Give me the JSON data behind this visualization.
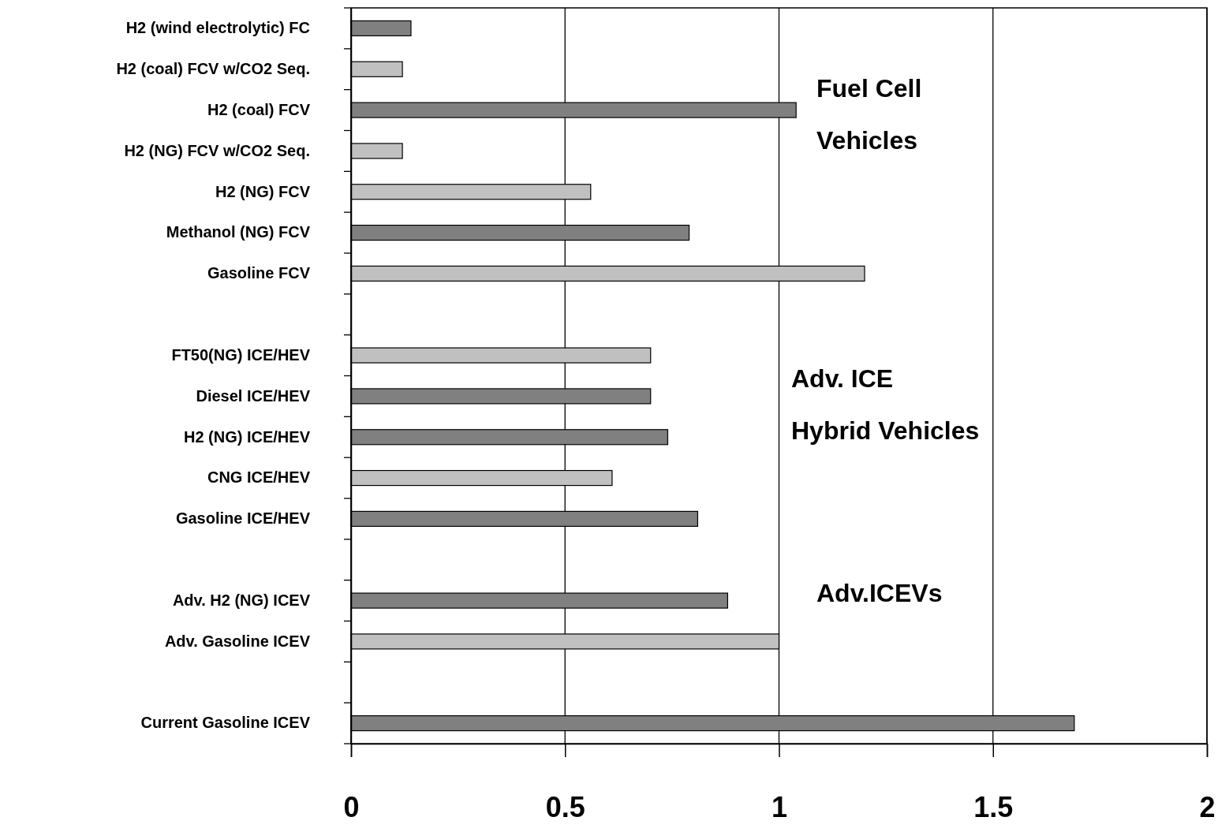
{
  "chart_data": {
    "type": "bar",
    "orientation": "horizontal",
    "categories": [
      "H2 (wind electrolytic) FC",
      "H2 (coal) FCV  w/CO2 Seq.",
      "H2 (coal) FCV",
      "H2 (NG) FCV  w/CO2 Seq.",
      "H2 (NG) FCV",
      "Methanol (NG) FCV",
      "Gasoline FCV",
      null,
      "FT50(NG) ICE/HEV",
      "Diesel ICE/HEV",
      "H2 (NG) ICE/HEV",
      "CNG ICE/HEV",
      "Gasoline ICE/HEV",
      null,
      "Adv. H2 (NG) ICEV",
      "Adv. Gasoline ICEV",
      null,
      "Current Gasoline ICEV"
    ],
    "values": [
      0.14,
      0.12,
      1.04,
      0.12,
      0.56,
      0.79,
      1.2,
      null,
      0.7,
      0.7,
      0.74,
      0.61,
      0.81,
      null,
      0.88,
      1.0,
      null,
      1.69
    ],
    "colors": [
      "#808080",
      "#c0c0c0",
      "#808080",
      "#c0c0c0",
      "#c0c0c0",
      "#808080",
      "#c0c0c0",
      null,
      "#c0c0c0",
      "#808080",
      "#808080",
      "#c0c0c0",
      "#808080",
      null,
      "#808080",
      "#c0c0c0",
      null,
      "#808080"
    ],
    "xlim": [
      0,
      2
    ],
    "xticks": [
      0,
      0.5,
      1,
      1.5,
      2
    ],
    "grid": "x",
    "annotations": [
      "Fuel Cell\nVehicles",
      "Adv. ICE\nHybrid Vehicles",
      "Adv.ICEVs"
    ]
  }
}
